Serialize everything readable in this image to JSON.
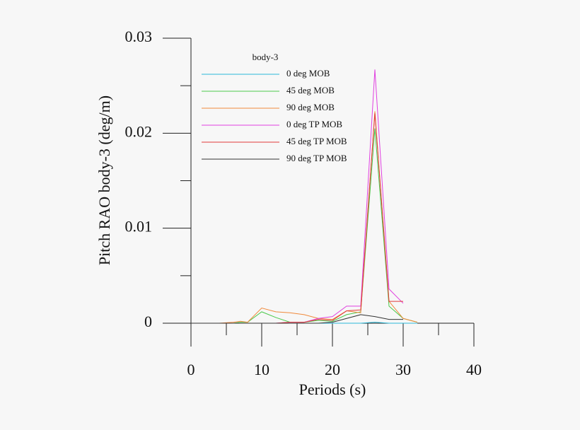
{
  "chart_data": {
    "type": "line",
    "xlabel": "Periods (s)",
    "ylabel": "Pitch RAO body-3 (deg/m)",
    "legend_title": "body-3",
    "x": [
      0,
      2,
      4,
      6,
      7,
      8,
      10,
      12,
      14,
      16,
      18,
      20,
      22,
      24,
      26,
      28,
      30,
      32
    ],
    "series": [
      {
        "name": "0 deg MOB",
        "color": "#2bb8d8",
        "values": [
          0,
          0,
          0,
          0,
          0,
          0,
          0,
          0,
          0,
          0,
          0,
          0,
          0,
          0,
          0.0001,
          0,
          0,
          0
        ]
      },
      {
        "name": "45 deg MOB",
        "color": "#4cc94c",
        "values": [
          0,
          0,
          0,
          0,
          0.0001,
          0.0001,
          0.0012,
          0.0006,
          0.0001,
          0.0001,
          0.0003,
          0.0002,
          0.0009,
          0.0012,
          0.0205,
          0.0018,
          0.0005,
          0.0001
        ]
      },
      {
        "name": "90 deg MOB",
        "color": "#f08a3c",
        "values": [
          0,
          0,
          0,
          0.0001,
          0.0002,
          0.0001,
          0.0016,
          0.0012,
          0.0011,
          0.0009,
          0.0005,
          0.0004,
          0.0013,
          0.0011,
          0.0223,
          0.0023,
          0.0005,
          0.0001
        ]
      },
      {
        "name": "0 deg TP MOB",
        "color": "#e040e0",
        "values": [
          0,
          0,
          0,
          0,
          0,
          0,
          0,
          0,
          0.0001,
          0.0001,
          0.0005,
          0.0007,
          0.0018,
          0.0018,
          0.0267,
          0.0036,
          0.0021,
          null
        ]
      },
      {
        "name": "45 deg TP MOB",
        "color": "#e03b3b",
        "values": [
          0,
          0,
          0,
          0,
          0,
          0,
          0,
          0,
          0.0001,
          0.0001,
          0.0004,
          0.0003,
          0.0013,
          0.0014,
          0.0221,
          0.0023,
          0.0023,
          null
        ]
      },
      {
        "name": "90 deg TP MOB",
        "color": "#333333",
        "values": [
          0,
          0,
          0,
          0,
          0,
          0,
          0,
          0,
          0,
          0,
          0,
          0.0001,
          0.0005,
          0.0009,
          0.0007,
          0.0004,
          0.0004,
          null
        ]
      }
    ],
    "xlim": [
      0,
      40
    ],
    "xticks": [
      0,
      10,
      20,
      30,
      40
    ],
    "xminorticks": [
      5,
      15,
      25,
      35
    ],
    "ylim": [
      0,
      0.03
    ],
    "yticks": [
      0,
      0.01,
      0.02,
      0.03
    ],
    "yminorticks": [
      0.005,
      0.015,
      0.025
    ]
  }
}
